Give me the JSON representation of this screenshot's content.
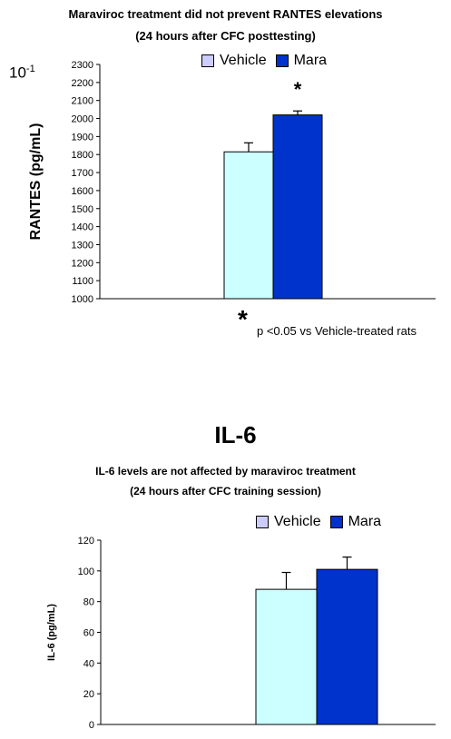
{
  "chart_data": [
    {
      "type": "bar",
      "title": "Maraviroc treatment did not prevent RANTES elevations",
      "subtitle": "(24 hours after CFC posttesting)",
      "scale_label": "10-1",
      "xlabel": "",
      "ylabel": "RANTES (pg/mL)",
      "ylim": [
        1000,
        2300
      ],
      "yticks": [
        1000,
        1100,
        1200,
        1300,
        1400,
        1500,
        1600,
        1700,
        1800,
        1900,
        2000,
        2100,
        2200,
        2300
      ],
      "categories": [
        ""
      ],
      "series": [
        {
          "name": "Vehicle",
          "values": [
            1815
          ],
          "error": [
            50
          ],
          "color": "#ccffff"
        },
        {
          "name": "Mara",
          "values": [
            2020
          ],
          "error": [
            22
          ],
          "color": "#0033cc"
        }
      ],
      "significance_marker": "*",
      "footnote_marker": "*",
      "footnote": "p <0.05 vs Vehicle-treated rats",
      "legend_position": "top-center",
      "grid": false
    },
    {
      "type": "bar",
      "heading": "IL-6",
      "title": "IL-6 levels are not affected by maraviroc treatment",
      "subtitle": "(24 hours after CFC training session)",
      "xlabel": "",
      "ylabel": "IL-6 (pg/mL)",
      "ylim": [
        0,
        120
      ],
      "yticks": [
        0,
        20,
        40,
        60,
        80,
        100,
        120
      ],
      "categories": [
        ""
      ],
      "series": [
        {
          "name": "Vehicle",
          "values": [
            88
          ],
          "error": [
            11
          ],
          "color": "#ccffff"
        },
        {
          "name": "Mara",
          "values": [
            101
          ],
          "error": [
            8
          ],
          "color": "#0033cc"
        }
      ],
      "legend_position": "top-center",
      "grid": false
    }
  ],
  "legend_swatch_color": "#ccccff"
}
